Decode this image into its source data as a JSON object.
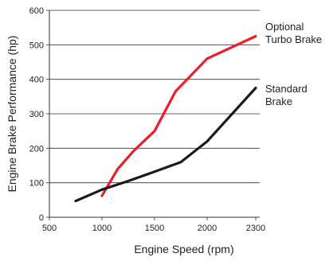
{
  "chart_data": {
    "type": "line",
    "xlabel": "Engine Speed (rpm)",
    "ylabel": "Engine Brake Performance (hp)",
    "xlim": [
      500,
      2300
    ],
    "ylim": [
      0,
      600
    ],
    "xticks": [
      500,
      1000,
      1500,
      2000,
      2300
    ],
    "yticks": [
      0,
      100,
      200,
      300,
      400,
      500,
      600
    ],
    "x_tick_labels": [
      "500",
      "1000",
      "1500",
      "2000",
      "2300"
    ],
    "y_tick_labels": [
      "0",
      "100",
      "200",
      "300",
      "400",
      "500",
      "600"
    ],
    "grid": "horizontal",
    "series": [
      {
        "name_lines": [
          "Optional",
          "Turbo Brake"
        ],
        "color": "#e8202a",
        "x": [
          1000,
          1150,
          1300,
          1500,
          1700,
          2000,
          2300
        ],
        "y": [
          62,
          140,
          192,
          250,
          365,
          460,
          525
        ]
      },
      {
        "name_lines": [
          "Standard",
          "Brake"
        ],
        "color": "#1a1a1a",
        "x": [
          750,
          1000,
          1250,
          1500,
          1750,
          2000,
          2300
        ],
        "y": [
          47,
          80,
          105,
          132,
          160,
          220,
          375
        ]
      }
    ]
  }
}
